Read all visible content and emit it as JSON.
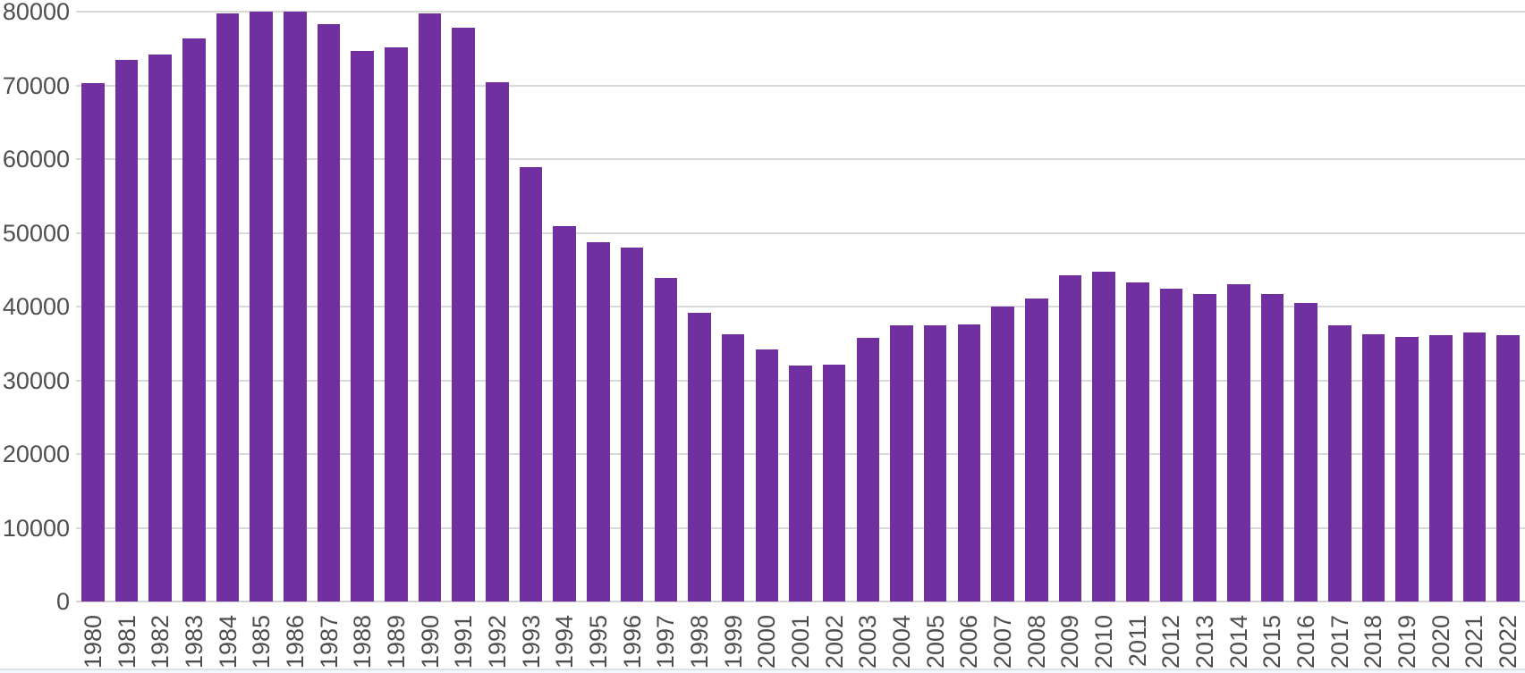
{
  "chart_data": {
    "type": "bar",
    "title": "",
    "xlabel": "",
    "ylabel": "",
    "categories": [
      "1980",
      "1981",
      "1982",
      "1983",
      "1984",
      "1985",
      "1986",
      "1987",
      "1988",
      "1989",
      "1990",
      "1991",
      "1992",
      "1993",
      "1994",
      "1995",
      "1996",
      "1997",
      "1998",
      "1999",
      "2000",
      "2001",
      "2002",
      "2003",
      "2004",
      "2005",
      "2006",
      "2007",
      "2008",
      "2009",
      "2010",
      "2011",
      "2012",
      "2013",
      "2014",
      "2015",
      "2016",
      "2017",
      "2018",
      "2019",
      "2020",
      "2021",
      "2022"
    ],
    "values": [
      70300,
      73500,
      74200,
      76400,
      79800,
      80100,
      80100,
      78400,
      74700,
      75200,
      79800,
      77900,
      70500,
      59000,
      51000,
      48800,
      48000,
      43900,
      39200,
      36300,
      34200,
      32000,
      32100,
      35800,
      37500,
      37500,
      37600,
      40000,
      41100,
      44300,
      44800,
      43300,
      42400,
      41700,
      43100,
      41700,
      40500,
      37500,
      36300,
      35900,
      36200,
      36500,
      36200
    ],
    "ylim": [
      0,
      80000
    ],
    "yticks": [
      0,
      10000,
      20000,
      30000,
      40000,
      50000,
      60000,
      70000,
      80000
    ],
    "ytick_labels": [
      "0",
      "10000",
      "20000",
      "30000",
      "40000",
      "50000",
      "60000",
      "70000",
      "80000"
    ],
    "grid": true,
    "legend_position": "none",
    "bar_color": "#7030A0",
    "gridline_color": "#D9D9D9",
    "axis_text_color": "#4F4F4F"
  }
}
